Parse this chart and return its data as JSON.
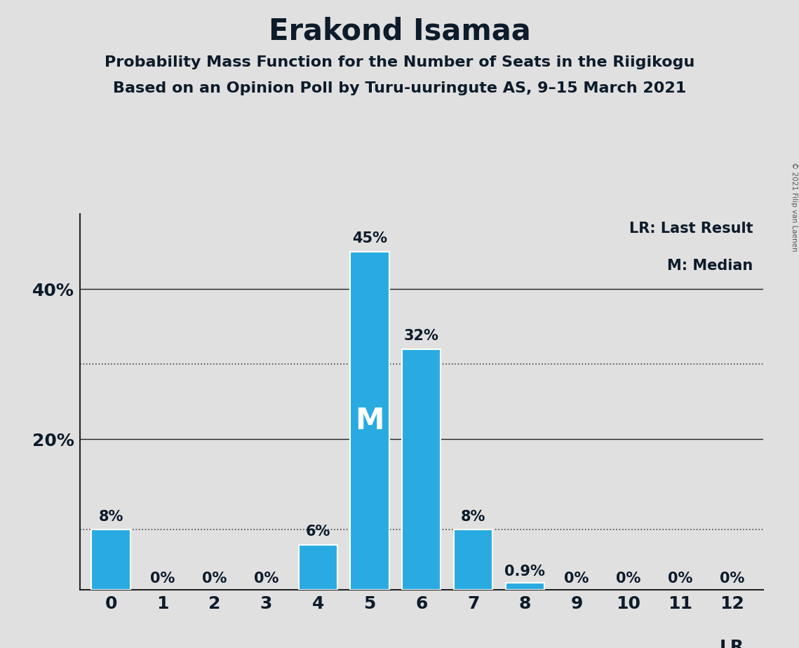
{
  "title": "Erakond Isamaa",
  "subtitle1": "Probability Mass Function for the Number of Seats in the Riigikogu",
  "subtitle2": "Based on an Opinion Poll by Turu-uuringute AS, 9–15 March 2021",
  "copyright": "© 2021 Filip van Laenen",
  "categories": [
    0,
    1,
    2,
    3,
    4,
    5,
    6,
    7,
    8,
    9,
    10,
    11,
    12
  ],
  "values": [
    8,
    0,
    0,
    0,
    6,
    45,
    32,
    8,
    0.9,
    0,
    0,
    0,
    0
  ],
  "bar_color": "#29ABE2",
  "background_color": "#E0E0E0",
  "median_seat": 5,
  "lr_seat": 12,
  "lr_label": "LR",
  "median_label": "M",
  "legend_lr": "LR: Last Result",
  "legend_m": "M: Median",
  "dotted_line_values": [
    8,
    30
  ],
  "ylim": [
    0,
    50
  ],
  "xlim": [
    -0.6,
    12.6
  ],
  "bar_width": 0.75,
  "title_fontsize": 30,
  "subtitle_fontsize": 16,
  "annotation_fontsize": 15,
  "tick_fontsize": 18,
  "median_fontsize": 30,
  "legend_fontsize": 15,
  "lr_fontsize": 18,
  "median_text_color": "#FFFFFF",
  "text_color": "#0d1b2a",
  "spine_color": "#222222",
  "dotted_color": "#444444",
  "solid_line_color": "#222222"
}
